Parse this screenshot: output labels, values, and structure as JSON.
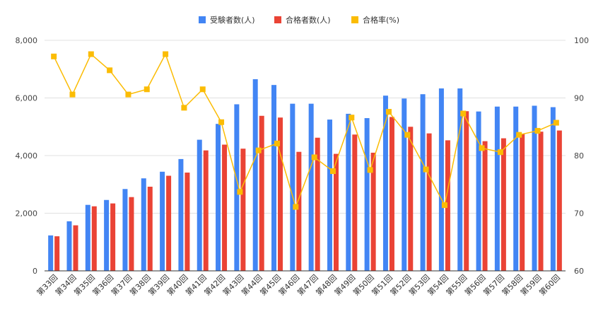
{
  "chart_data": {
    "type": "bar",
    "categories": [
      "第33回",
      "第34回",
      "第35回",
      "第36回",
      "第37回",
      "第38回",
      "第39回",
      "第40回",
      "第41回",
      "第42回",
      "第43回",
      "第44回",
      "第45回",
      "第46回",
      "第47回",
      "第48回",
      "第49回",
      "第50回",
      "第51回",
      "第52回",
      "第53回",
      "第54回",
      "第55回",
      "第56回",
      "第57回",
      "第58回",
      "第59回",
      "第60回"
    ],
    "series": [
      {
        "name": "受験者数(人)",
        "kind": "bar",
        "axis": "left",
        "color": "#4285f4",
        "values": [
          1230,
          1720,
          2290,
          2460,
          2840,
          3210,
          3440,
          3880,
          4550,
          5100,
          5780,
          6650,
          6450,
          5800,
          5800,
          5250,
          5450,
          5300,
          6080,
          5980,
          6130,
          6330,
          6330,
          5530,
          5700,
          5700,
          5730,
          5680
        ]
      },
      {
        "name": "合格者数(人)",
        "kind": "bar",
        "axis": "left",
        "color": "#ea4335",
        "values": [
          1200,
          1580,
          2240,
          2340,
          2560,
          2920,
          3300,
          3410,
          4180,
          4380,
          4240,
          5380,
          5320,
          4130,
          4620,
          4060,
          4730,
          4100,
          5340,
          5000,
          4770,
          4530,
          5540,
          4500,
          4600,
          4760,
          4830,
          4870
        ]
      },
      {
        "name": "合格率(%)",
        "kind": "line",
        "axis": "right",
        "color": "#fbbc04",
        "values": [
          97.2,
          90.6,
          97.6,
          94.8,
          90.6,
          91.5,
          97.6,
          88.3,
          91.5,
          85.8,
          73.7,
          80.9,
          82.1,
          71.1,
          79.7,
          77.3,
          86.6,
          77.5,
          87.6,
          83.6,
          77.6,
          71.4,
          87.3,
          81.3,
          80.6,
          83.6,
          84.3,
          85.7
        ]
      }
    ],
    "yleft": {
      "min": 0,
      "max": 8000,
      "ticks": [
        0,
        2000,
        4000,
        6000,
        8000
      ],
      "tick_labels": [
        "0",
        "2,000",
        "4,000",
        "6,000",
        "8,000"
      ]
    },
    "yright": {
      "min": 60,
      "max": 100,
      "ticks": [
        60,
        70,
        80,
        90,
        100
      ],
      "tick_labels": [
        "60",
        "70",
        "80",
        "90",
        "100"
      ]
    },
    "grid": true,
    "legend": "top-center",
    "title": "",
    "xlabel": "",
    "ylabel": ""
  }
}
